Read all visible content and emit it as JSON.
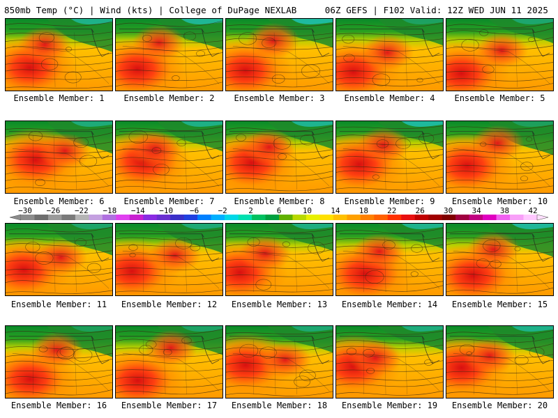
{
  "header": {
    "left": "850mb Temp (°C) | Wind (kts) | College of DuPage NEXLAB",
    "right": "06Z GEFS | F102 Valid: 12Z WED JUN 11 2025"
  },
  "panels": [
    {
      "label": "Ensemble Member: 1"
    },
    {
      "label": "Ensemble Member: 2"
    },
    {
      "label": "Ensemble Member: 3"
    },
    {
      "label": "Ensemble Member: 4"
    },
    {
      "label": "Ensemble Member: 5"
    },
    {
      "label": "Ensemble Member: 6"
    },
    {
      "label": "Ensemble Member: 7"
    },
    {
      "label": "Ensemble Member: 8"
    },
    {
      "label": "Ensemble Member: 9"
    },
    {
      "label": "Ensemble Member: 10"
    },
    {
      "label": "Ensemble Member: 11"
    },
    {
      "label": "Ensemble Member: 12"
    },
    {
      "label": "Ensemble Member: 13"
    },
    {
      "label": "Ensemble Member: 14"
    },
    {
      "label": "Ensemble Member: 15"
    },
    {
      "label": "Ensemble Member: 16"
    },
    {
      "label": "Ensemble Member: 17"
    },
    {
      "label": "Ensemble Member: 18"
    },
    {
      "label": "Ensemble Member: 19"
    },
    {
      "label": "Ensemble Member: 20"
    }
  ],
  "colorbar": {
    "tick_labels": [
      "−30",
      "−26",
      "−22",
      "−18",
      "−14",
      "−10",
      "−6",
      "−2",
      "2",
      "6",
      "10",
      "14",
      "18",
      "22",
      "26",
      "30",
      "34",
      "38",
      "42"
    ],
    "colors": [
      "#8c8c8c",
      "#6e6e6e",
      "#9a9a9a",
      "#7a7a7a",
      "#b4b4b4",
      "#c4a0e0",
      "#b070e0",
      "#e040f0",
      "#c820d0",
      "#8a2be2",
      "#6a2fd0",
      "#3a2fc8",
      "#2040e0",
      "#0080ff",
      "#00b0ff",
      "#00d8e8",
      "#00e0b0",
      "#00c060",
      "#00a040",
      "#60b000",
      "#b8d800",
      "#e8f000",
      "#ffe000",
      "#ffc000",
      "#ffa000",
      "#ff8000",
      "#ff6000",
      "#ff3000",
      "#e81010",
      "#c00000",
      "#a00000",
      "#800000",
      "#a00040",
      "#c00080",
      "#e000c0",
      "#f060f0",
      "#f8a0f8",
      "#ffc8ff"
    ]
  }
}
